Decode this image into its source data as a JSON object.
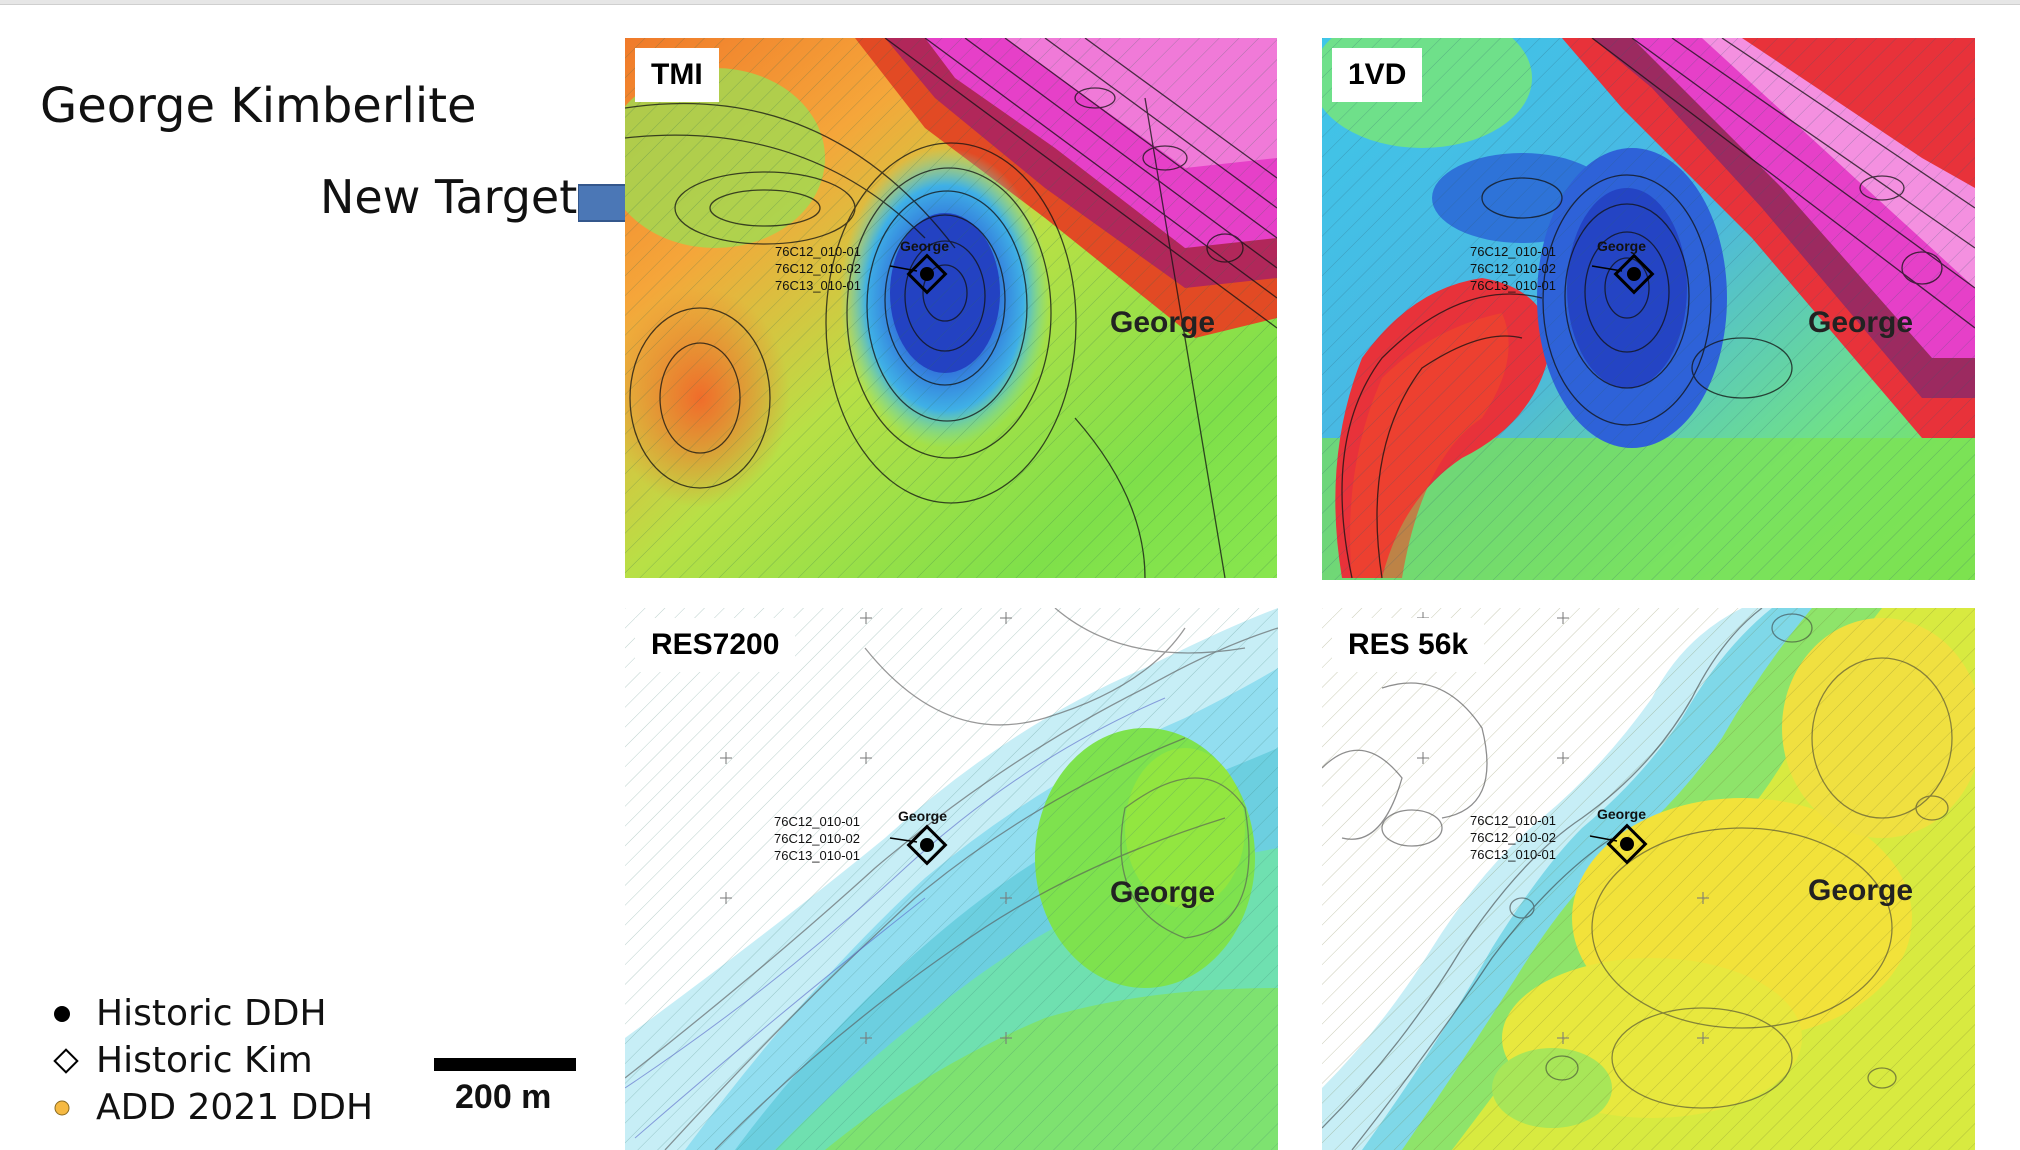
{
  "title": "George Kimberlite",
  "annotation": {
    "label": "New Target",
    "arrow_icon": "right-arrow-icon"
  },
  "panels": [
    {
      "id": "tmi",
      "label": "TMI",
      "feature": "George",
      "site": "George",
      "holes": [
        "76C12_010-01",
        "76C12_010-02",
        "76C13_010-01"
      ]
    },
    {
      "id": "1vd",
      "label": "1VD",
      "feature": "George",
      "site": "George",
      "holes": [
        "76C12_010-01",
        "76C12_010-02",
        "76C13_010-01"
      ]
    },
    {
      "id": "res7200",
      "label": "RES7200",
      "feature": "George",
      "site": "George",
      "holes": [
        "76C12_010-01",
        "76C12_010-02",
        "76C13_010-01"
      ]
    },
    {
      "id": "res56k",
      "label": "RES 56k",
      "feature": "George",
      "site": "George",
      "holes": [
        "76C12_010-01",
        "76C12_010-02",
        "76C13_010-01"
      ]
    }
  ],
  "legend": [
    {
      "label": "Historic DDH",
      "icon": "filled-circle-icon",
      "color": "#000000"
    },
    {
      "label": "Historic Kim",
      "icon": "diamond-outline-icon",
      "color": "#000000"
    },
    {
      "label": "ADD 2021 DDH",
      "icon": "orange-circle-icon",
      "color": "#f5b942"
    }
  ],
  "scale_bar": {
    "label": "200 m"
  },
  "colors": {
    "arrow": "#4b77b6",
    "magnetic_high": "#e640c8",
    "magnetic_low": "#2a49c8"
  }
}
